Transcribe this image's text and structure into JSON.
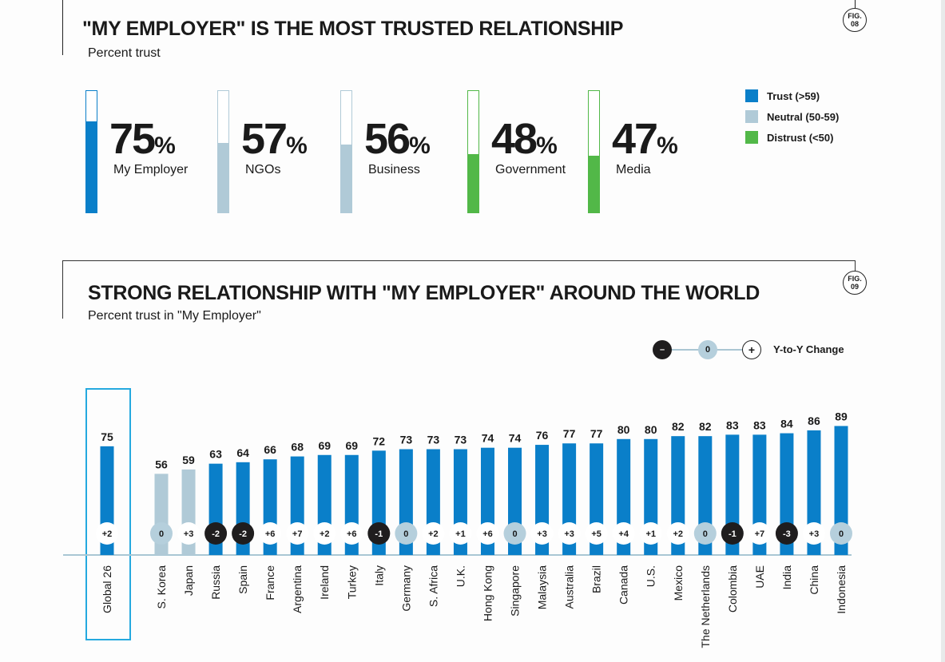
{
  "colors": {
    "trust": "#0a7fc9",
    "neutral": "#b0cad7",
    "distrust": "#52b848",
    "negative_change": "#1f1d1e",
    "zero_change": "#b5cfdc",
    "positive_change": "#ffffff",
    "highlight_box": "#25a9df",
    "axis": "#a9c7d4"
  },
  "fig08": {
    "title": "\"MY EMPLOYER\" IS THE MOST TRUSTED RELATIONSHIP",
    "subtitle": "Percent trust",
    "badge": [
      "FIG.",
      "08"
    ],
    "kpis": [
      {
        "value": "75",
        "pct": "%",
        "label": "My Employer",
        "level": 75,
        "category": "trust"
      },
      {
        "value": "57",
        "pct": "%",
        "label": "NGOs",
        "level": 57,
        "category": "neutral"
      },
      {
        "value": "56",
        "pct": "%",
        "label": "Business",
        "level": 56,
        "category": "neutral"
      },
      {
        "value": "48",
        "pct": "%",
        "label": "Government",
        "level": 48,
        "category": "distrust"
      },
      {
        "value": "47",
        "pct": "%",
        "label": "Media",
        "level": 47,
        "category": "distrust"
      }
    ],
    "legend": [
      {
        "label": "Trust (>59)",
        "category": "trust"
      },
      {
        "label": "Neutral (50-59)",
        "category": "neutral"
      },
      {
        "label": "Distrust (<50)",
        "category": "distrust"
      }
    ]
  },
  "fig09": {
    "title": "STRONG RELATIONSHIP WITH \"MY EMPLOYER\" AROUND THE WORLD",
    "subtitle": "Percent trust in \"My Employer\"",
    "badge": [
      "FIG.",
      "09"
    ],
    "yoy_legend": {
      "minus": "–",
      "zero": "0",
      "plus": "+",
      "label": "Y-to-Y Change"
    }
  },
  "chart_data": {
    "type": "bar",
    "title": "STRONG RELATIONSHIP WITH \"MY EMPLOYER\" AROUND THE WORLD",
    "subtitle": "Percent trust in \"My Employer\"",
    "xlabel": "",
    "ylabel": "Percent trust",
    "ylim": [
      0,
      100
    ],
    "grid": false,
    "highlighted_category": "Global 26",
    "categories": [
      "Global 26",
      "S. Korea",
      "Japan",
      "Russia",
      "Spain",
      "France",
      "Argentina",
      "Ireland",
      "Turkey",
      "Italy",
      "Germany",
      "S. Africa",
      "U.K.",
      "Hong Kong",
      "Singapore",
      "Malaysia",
      "Australia",
      "Brazil",
      "Canada",
      "U.S.",
      "Mexico",
      "The Netherlands",
      "Colombia",
      "UAE",
      "India",
      "China",
      "Indonesia"
    ],
    "values": [
      75,
      56,
      59,
      63,
      64,
      66,
      68,
      69,
      69,
      72,
      73,
      73,
      73,
      74,
      74,
      76,
      77,
      77,
      80,
      80,
      82,
      82,
      83,
      83,
      84,
      86,
      89
    ],
    "yoy_change": [
      "+2",
      "0",
      "+3",
      "-2",
      "-2",
      "+6",
      "+7",
      "+2",
      "+6",
      "-1",
      "0",
      "+2",
      "+1",
      "+6",
      "0",
      "+3",
      "+3",
      "+5",
      "+4",
      "+1",
      "+2",
      "0",
      "-1",
      "+7",
      "-3",
      "+3",
      "0"
    ],
    "legend": [
      {
        "label": "Trust (>59)",
        "color": "#0a7fc9"
      },
      {
        "label": "Neutral (50-59)",
        "color": "#b0cad7"
      },
      {
        "label": "Distrust (<50)",
        "color": "#52b848"
      }
    ]
  }
}
